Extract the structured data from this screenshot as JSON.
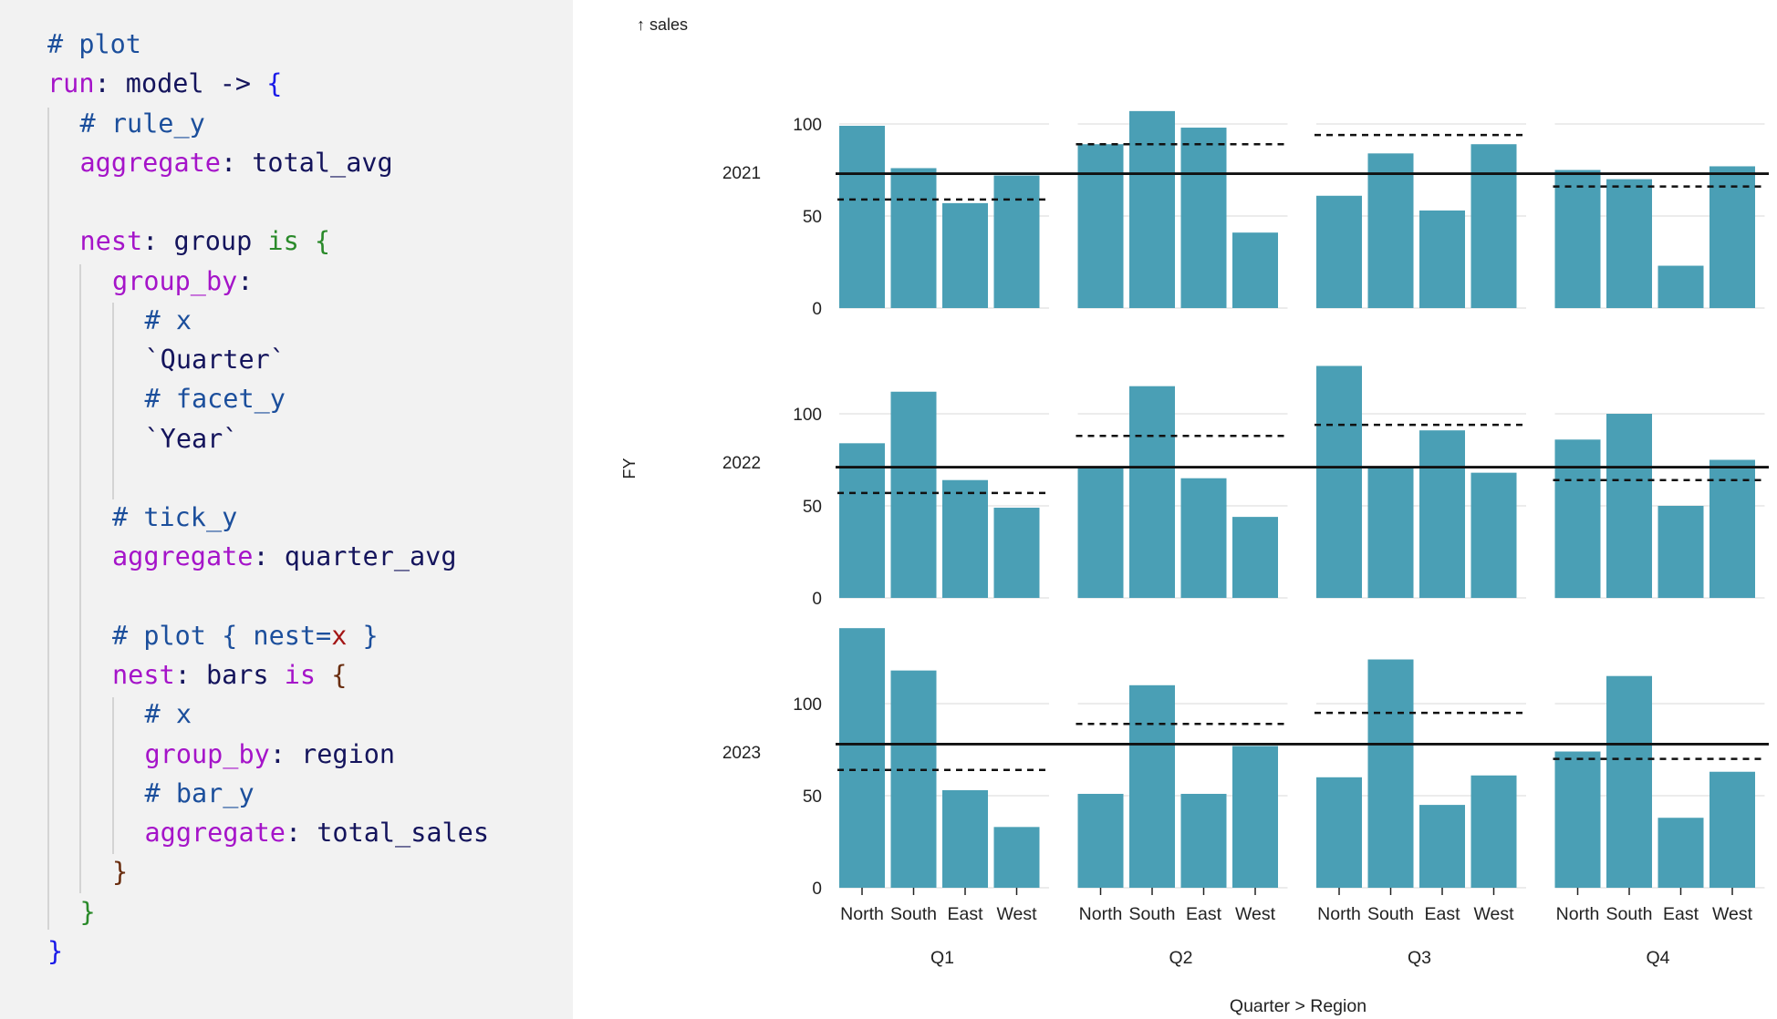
{
  "code": {
    "colors": {
      "comment": "#1c4f9c",
      "keyword": "#a514c9",
      "identifier": "#14145c",
      "is": "#2a8a2a",
      "brace1": "#1a1ae8",
      "brace2": "#2a8a2a",
      "brace3": "#6a2e10",
      "param": "#a31515"
    },
    "lines": [
      {
        "indent": 0,
        "tokens": [
          {
            "t": "# plot",
            "c": "comment"
          }
        ]
      },
      {
        "indent": 0,
        "tokens": [
          {
            "t": "run",
            "c": "keyword"
          },
          {
            "t": ": model -> ",
            "c": "identifier"
          },
          {
            "t": "{",
            "c": "brace1"
          }
        ]
      },
      {
        "indent": 1,
        "tokens": [
          {
            "t": "# rule_y",
            "c": "comment"
          }
        ]
      },
      {
        "indent": 1,
        "tokens": [
          {
            "t": "aggregate",
            "c": "keyword"
          },
          {
            "t": ": total_avg",
            "c": "identifier"
          }
        ]
      },
      {
        "indent": 1,
        "tokens": []
      },
      {
        "indent": 1,
        "tokens": [
          {
            "t": "nest",
            "c": "keyword"
          },
          {
            "t": ": group ",
            "c": "identifier"
          },
          {
            "t": "is",
            "c": "is"
          },
          {
            "t": " ",
            "c": "identifier"
          },
          {
            "t": "{",
            "c": "brace2"
          }
        ]
      },
      {
        "indent": 2,
        "tokens": [
          {
            "t": "group_by",
            "c": "keyword"
          },
          {
            "t": ":",
            "c": "identifier"
          }
        ]
      },
      {
        "indent": 3,
        "tokens": [
          {
            "t": "# x",
            "c": "comment"
          }
        ]
      },
      {
        "indent": 3,
        "tokens": [
          {
            "t": "`Quarter`",
            "c": "identifier"
          }
        ]
      },
      {
        "indent": 3,
        "tokens": [
          {
            "t": "# facet_y",
            "c": "comment"
          }
        ]
      },
      {
        "indent": 3,
        "tokens": [
          {
            "t": "`Year`",
            "c": "identifier"
          }
        ]
      },
      {
        "indent": 3,
        "tokens": []
      },
      {
        "indent": 2,
        "tokens": [
          {
            "t": "# tick_y",
            "c": "comment"
          }
        ]
      },
      {
        "indent": 2,
        "tokens": [
          {
            "t": "aggregate",
            "c": "keyword"
          },
          {
            "t": ": quarter_avg",
            "c": "identifier"
          }
        ]
      },
      {
        "indent": 2,
        "tokens": []
      },
      {
        "indent": 2,
        "tokens": [
          {
            "t": "# plot { nest=",
            "c": "comment"
          },
          {
            "t": "x",
            "c": "param"
          },
          {
            "t": " }",
            "c": "comment"
          }
        ]
      },
      {
        "indent": 2,
        "tokens": [
          {
            "t": "nest",
            "c": "keyword"
          },
          {
            "t": ": bars ",
            "c": "identifier"
          },
          {
            "t": "is",
            "c": "keyword"
          },
          {
            "t": " ",
            "c": "identifier"
          },
          {
            "t": "{",
            "c": "brace3"
          }
        ]
      },
      {
        "indent": 3,
        "tokens": [
          {
            "t": "# x",
            "c": "comment"
          }
        ]
      },
      {
        "indent": 3,
        "tokens": [
          {
            "t": "group_by",
            "c": "keyword"
          },
          {
            "t": ": region",
            "c": "identifier"
          }
        ]
      },
      {
        "indent": 3,
        "tokens": [
          {
            "t": "# bar_y",
            "c": "comment"
          }
        ]
      },
      {
        "indent": 3,
        "tokens": [
          {
            "t": "aggregate",
            "c": "keyword"
          },
          {
            "t": ": total_sales",
            "c": "identifier"
          }
        ]
      },
      {
        "indent": 2,
        "tokens": [
          {
            "t": "}",
            "c": "brace3"
          }
        ]
      },
      {
        "indent": 1,
        "tokens": [
          {
            "t": "}",
            "c": "brace2"
          }
        ]
      },
      {
        "indent": 0,
        "tokens": [
          {
            "t": "}",
            "c": "brace1"
          }
        ]
      }
    ]
  },
  "chart_data": {
    "type": "bar",
    "y_axis_title": "↑ sales",
    "facet_label": "FY",
    "x_axis_title": "Quarter > Region",
    "bar_color": "#4a9fb5",
    "ylim": [
      0,
      130
    ],
    "y_ticks": [
      0,
      50,
      100
    ],
    "grid": true,
    "regions": [
      "North",
      "South",
      "East",
      "West"
    ],
    "quarters": [
      "Q1",
      "Q2",
      "Q3",
      "Q4"
    ],
    "years": [
      "2021",
      "2022",
      "2023"
    ],
    "facets": [
      {
        "year": "2021",
        "total_avg": 73,
        "quarters": [
          {
            "quarter": "Q1",
            "quarter_avg": 59,
            "values": [
              99,
              76,
              57,
              72
            ]
          },
          {
            "quarter": "Q2",
            "quarter_avg": 89,
            "values": [
              89,
              107,
              98,
              41
            ]
          },
          {
            "quarter": "Q3",
            "quarter_avg": 94,
            "values": [
              61,
              84,
              53,
              89
            ]
          },
          {
            "quarter": "Q4",
            "quarter_avg": 66,
            "values": [
              75,
              70,
              23,
              77
            ]
          }
        ]
      },
      {
        "year": "2022",
        "total_avg": 71,
        "quarters": [
          {
            "quarter": "Q1",
            "quarter_avg": 57,
            "values": [
              84,
              112,
              64,
              49
            ]
          },
          {
            "quarter": "Q2",
            "quarter_avg": 88,
            "values": [
              71,
              115,
              65,
              44
            ]
          },
          {
            "quarter": "Q3",
            "quarter_avg": 94,
            "values": [
              126,
              71,
              91,
              68
            ]
          },
          {
            "quarter": "Q4",
            "quarter_avg": 64,
            "values": [
              86,
              100,
              50,
              75
            ]
          }
        ]
      },
      {
        "year": "2023",
        "total_avg": 78,
        "quarters": [
          {
            "quarter": "Q1",
            "quarter_avg": 64,
            "values": [
              141,
              118,
              53,
              33
            ]
          },
          {
            "quarter": "Q2",
            "quarter_avg": 89,
            "values": [
              51,
              110,
              51,
              77
            ]
          },
          {
            "quarter": "Q3",
            "quarter_avg": 95,
            "values": [
              60,
              124,
              45,
              61
            ]
          },
          {
            "quarter": "Q4",
            "quarter_avg": 70,
            "values": [
              74,
              115,
              38,
              63
            ]
          }
        ]
      }
    ]
  }
}
